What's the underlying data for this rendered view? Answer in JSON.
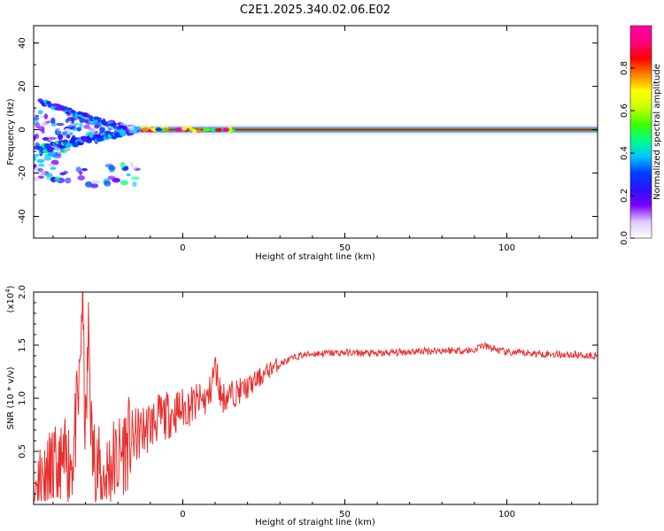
{
  "title": "C2E1.2025.340.02.06.E02",
  "colors": {
    "snr_line": "#e83030",
    "axes": "#000000",
    "colormap_stops": [
      "#ffffff",
      "#e0c8ff",
      "#7a00ff",
      "#2a10ff",
      "#0040ff",
      "#00c8ff",
      "#00ff80",
      "#40ff00",
      "#c8ff00",
      "#ffff00",
      "#ff8000",
      "#ff0000",
      "#ff0080",
      "#ff00a0"
    ]
  },
  "chart_data": [
    {
      "type": "heatmap",
      "title": "C2E1.2025.340.02.06.E02",
      "xlabel": "Height of straight line (km)",
      "ylabel": "Frequency (Hz)",
      "xlim": [
        -46,
        128
      ],
      "ylim": [
        -50,
        48
      ],
      "xticks": [
        "0",
        "50",
        "100"
      ],
      "yticks": [
        "40",
        "20",
        "0",
        "-20",
        "-40"
      ],
      "colorbar": {
        "label": "Normalized spectral amplitude",
        "range": [
          0,
          1
        ],
        "ticks": [
          "0.0",
          "0.2",
          "0.4",
          "0.6",
          "0.8"
        ]
      },
      "ridge_frequency_hz": 0,
      "ridge_start_km": -16
    },
    {
      "type": "line",
      "xlabel": "Height of straight line (km)",
      "ylabel": "SNR (10 * v/v)",
      "yscale_label": "(x10",
      "yscale_exp": "4",
      "xlim": [
        -46,
        128
      ],
      "ylim": [
        0,
        2.0
      ],
      "xticks": [
        "0",
        "50",
        "100"
      ],
      "yticks": [
        "0.5",
        "1.0",
        "1.5",
        "2.0"
      ],
      "series": [
        {
          "x": [
            -46,
            -42,
            -38,
            -34,
            -32,
            -31,
            -30,
            -29,
            -28,
            -26,
            -24,
            -22,
            -20,
            -18,
            -16,
            -12,
            -8,
            -4,
            0,
            4,
            8,
            10,
            12,
            16,
            20,
            24,
            28,
            32,
            36,
            40,
            50,
            60,
            70,
            80,
            90,
            92,
            100,
            110,
            120,
            128
          ],
          "y": [
            0.2,
            0.25,
            0.3,
            0.45,
            1.0,
            2.0,
            0.6,
            1.65,
            0.5,
            0.3,
            0.25,
            0.4,
            0.4,
            0.55,
            0.6,
            0.7,
            0.8,
            0.85,
            0.9,
            0.95,
            1.0,
            1.3,
            1.0,
            1.05,
            1.1,
            1.2,
            1.3,
            1.35,
            1.4,
            1.42,
            1.43,
            1.42,
            1.44,
            1.45,
            1.45,
            1.5,
            1.43,
            1.42,
            1.41,
            1.4
          ]
        }
      ]
    }
  ]
}
